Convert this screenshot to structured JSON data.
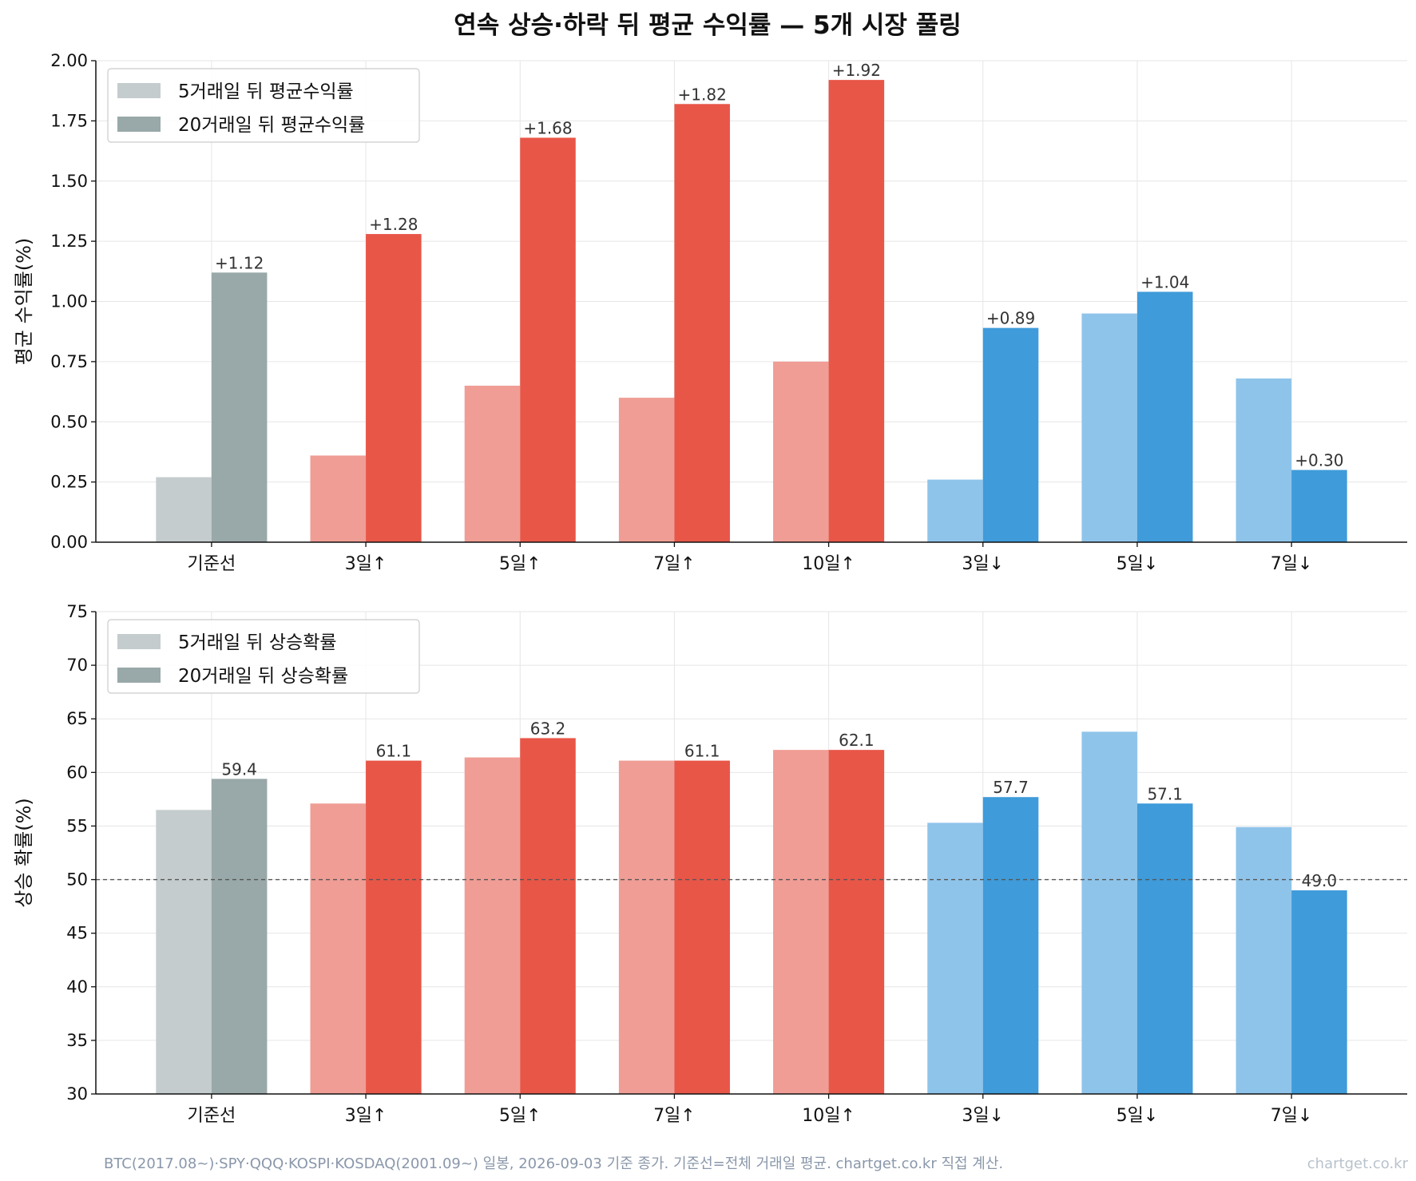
{
  "title": "연속 상승·하락 뒤 평균 수익률 — 5개 시장 풀링",
  "footnote": "BTC(2017.08~)·SPY·QQQ·KOSPI·KOSDAQ(2001.09~) 일봉, 2026-09-03 기준 종가. 기준선=전체 거래일 평균. chartget.co.kr 직접 계산.",
  "watermark": "chartget.co.kr",
  "colors": {
    "baseline_light": "#c4cccd",
    "baseline_dark": "#99a8a8",
    "up_light": "#f09d95",
    "up_dark": "#e85648",
    "down_light": "#8fc4ea",
    "down_dark": "#3f9bda",
    "axis": "#111111",
    "grid": "#e6e6e6",
    "refline": "#555555"
  },
  "chart_data": [
    {
      "type": "bar",
      "categories": [
        "기준선",
        "3일↑",
        "5일↑",
        "7일↑",
        "10일↑",
        "3일↓",
        "5일↓",
        "7일↓"
      ],
      "category_groups": [
        "baseline",
        "up",
        "up",
        "up",
        "up",
        "down",
        "down",
        "down"
      ],
      "ylabel": "평균 수익률(%)",
      "ylim": [
        0,
        2.0
      ],
      "yticks": [
        "0.00",
        "0.25",
        "0.50",
        "0.75",
        "1.00",
        "1.25",
        "1.50",
        "1.75",
        "2.00"
      ],
      "grid": true,
      "legend_position": "top-left",
      "series": [
        {
          "name": "5거래일 뒤 평균수익률",
          "values": [
            0.27,
            0.36,
            0.65,
            0.6,
            0.75,
            0.26,
            0.95,
            0.68
          ]
        },
        {
          "name": "20거래일 뒤 평균수익률",
          "values": [
            1.12,
            1.28,
            1.68,
            1.82,
            1.92,
            0.89,
            1.04,
            0.3
          ],
          "data_labels": [
            "+1.12",
            "+1.28",
            "+1.68",
            "+1.82",
            "+1.92",
            "+0.89",
            "+1.04",
            "+0.30"
          ]
        }
      ]
    },
    {
      "type": "bar",
      "categories": [
        "기준선",
        "3일↑",
        "5일↑",
        "7일↑",
        "10일↑",
        "3일↓",
        "5일↓",
        "7일↓"
      ],
      "category_groups": [
        "baseline",
        "up",
        "up",
        "up",
        "up",
        "down",
        "down",
        "down"
      ],
      "ylabel": "상승 확률(%)",
      "ylim": [
        30,
        75
      ],
      "yticks": [
        "30",
        "35",
        "40",
        "45",
        "50",
        "55",
        "60",
        "65",
        "70",
        "75"
      ],
      "grid": true,
      "legend_position": "top-left",
      "reference_line": 50,
      "series": [
        {
          "name": "5거래일 뒤 상승확률",
          "values": [
            56.5,
            57.1,
            61.4,
            61.1,
            62.1,
            55.3,
            63.8,
            54.9
          ]
        },
        {
          "name": "20거래일 뒤 상승확률",
          "values": [
            59.4,
            61.1,
            63.2,
            61.1,
            62.1,
            57.7,
            57.1,
            49.0
          ],
          "data_labels": [
            "59.4",
            "61.1",
            "63.2",
            "61.1",
            "62.1",
            "57.7",
            "57.1",
            "49.0"
          ]
        }
      ]
    }
  ]
}
